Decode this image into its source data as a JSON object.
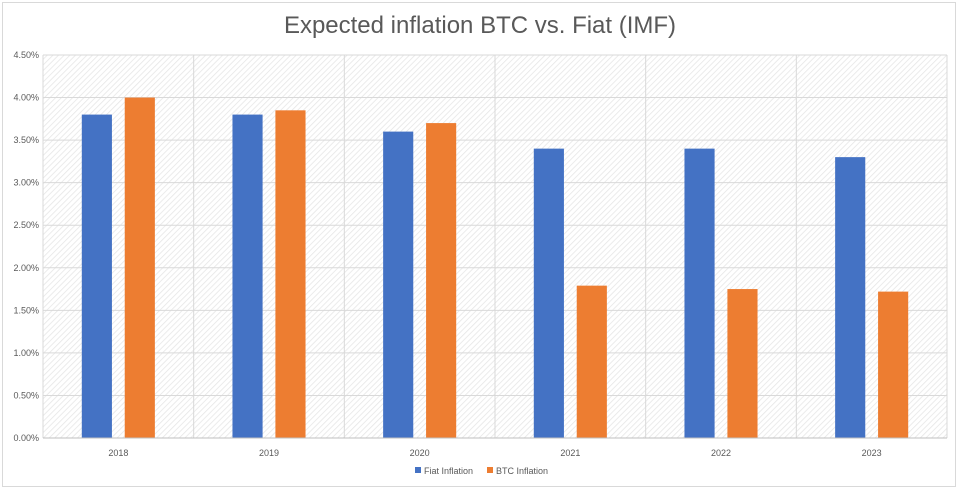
{
  "chart_data": {
    "type": "bar",
    "title": "Expected inflation BTC vs. Fiat (IMF)",
    "xlabel": "",
    "ylabel": "",
    "categories": [
      "2018",
      "2019",
      "2020",
      "2021",
      "2022",
      "2023"
    ],
    "series": [
      {
        "name": "Fiat Inflation",
        "color": "#4472c4",
        "values": [
          3.8,
          3.8,
          3.6,
          3.4,
          3.4,
          3.3
        ]
      },
      {
        "name": "BTC Inflation",
        "color": "#ed7d31",
        "values": [
          4.0,
          3.85,
          3.7,
          1.79,
          1.75,
          1.72
        ]
      }
    ],
    "ylim": [
      0,
      4.5
    ],
    "y_ticks": [
      "0.00%",
      "0.50%",
      "1.00%",
      "1.50%",
      "2.00%",
      "2.50%",
      "3.00%",
      "3.50%",
      "4.00%",
      "4.50%"
    ],
    "y_tick_values": [
      0,
      0.5,
      1.0,
      1.5,
      2.0,
      2.5,
      3.0,
      3.5,
      4.0,
      4.5
    ],
    "grid": true,
    "legend_position": "bottom"
  }
}
